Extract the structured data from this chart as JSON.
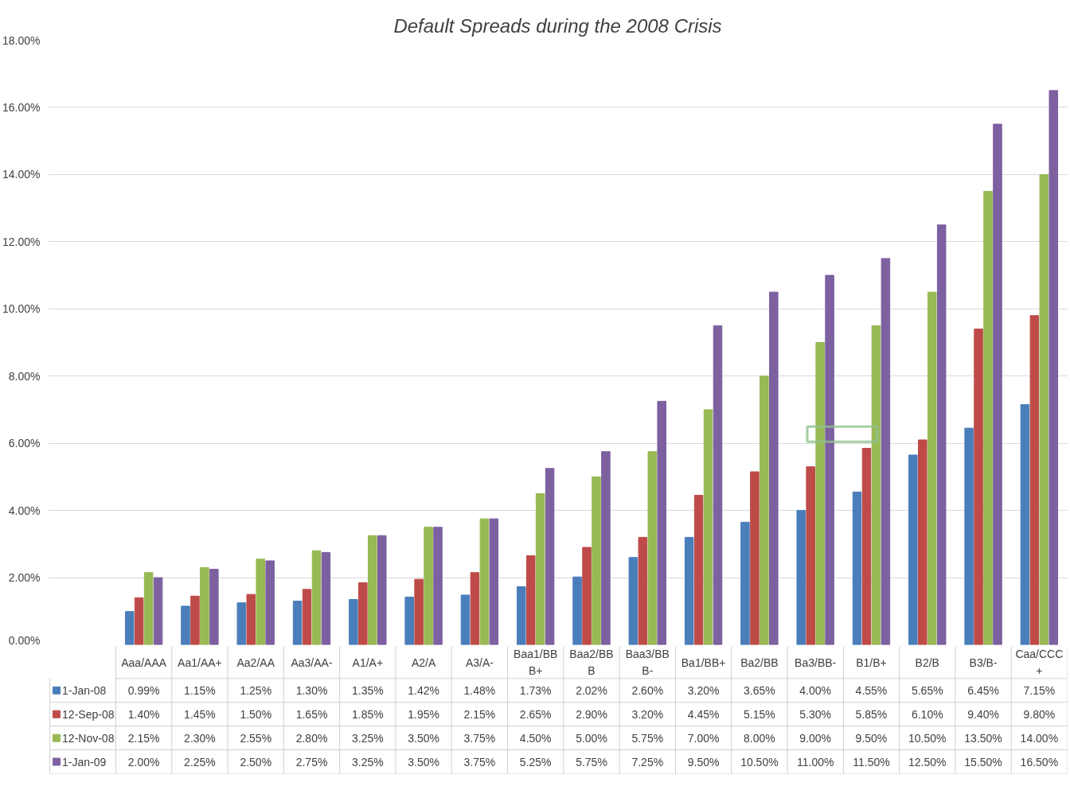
{
  "chart_data": {
    "type": "bar",
    "title": "Default Spreads during the 2008 Crisis",
    "categories": [
      "Aaa/AAA",
      "Aa1/AA+",
      "Aa2/AA",
      "Aa3/AA-",
      "A1/A+",
      "A2/A",
      "A3/A-",
      "Baa1/BBB+",
      "Baa2/BBB",
      "Baa3/BBB-",
      "Ba1/BB+",
      "Ba2/BB",
      "Ba3/BB-",
      "B1/B+",
      "B2/B",
      "B3/B-",
      "Caa/CCC+"
    ],
    "series": [
      {
        "name": "1-Jan-08",
        "color": "#4a7ebb",
        "values": [
          0.99,
          1.15,
          1.25,
          1.3,
          1.35,
          1.42,
          1.48,
          1.73,
          2.02,
          2.6,
          3.2,
          3.65,
          4.0,
          4.55,
          5.65,
          6.45,
          7.15
        ],
        "value_labels": [
          "0.99%",
          "1.15%",
          "1.25%",
          "1.30%",
          "1.35%",
          "1.42%",
          "1.48%",
          "1.73%",
          "2.02%",
          "2.60%",
          "3.20%",
          "3.65%",
          "4.00%",
          "4.55%",
          "5.65%",
          "6.45%",
          "7.15%"
        ]
      },
      {
        "name": "12-Sep-08",
        "color": "#be4b48",
        "values": [
          1.4,
          1.45,
          1.5,
          1.65,
          1.85,
          1.95,
          2.15,
          2.65,
          2.9,
          3.2,
          4.45,
          5.15,
          5.3,
          5.85,
          6.1,
          9.4,
          9.8
        ],
        "value_labels": [
          "1.40%",
          "1.45%",
          "1.50%",
          "1.65%",
          "1.85%",
          "1.95%",
          "2.15%",
          "2.65%",
          "2.90%",
          "3.20%",
          "4.45%",
          "5.15%",
          "5.30%",
          "5.85%",
          "6.10%",
          "9.40%",
          "9.80%"
        ]
      },
      {
        "name": "12-Nov-08",
        "color": "#98b954",
        "values": [
          2.15,
          2.3,
          2.55,
          2.8,
          3.25,
          3.5,
          3.75,
          4.5,
          5.0,
          5.75,
          7.0,
          8.0,
          9.0,
          9.5,
          10.5,
          13.5,
          14.0
        ],
        "value_labels": [
          "2.15%",
          "2.30%",
          "2.55%",
          "2.80%",
          "3.25%",
          "3.50%",
          "3.75%",
          "4.50%",
          "5.00%",
          "5.75%",
          "7.00%",
          "8.00%",
          "9.00%",
          "9.50%",
          "10.50%",
          "13.50%",
          "14.00%"
        ]
      },
      {
        "name": "1-Jan-09",
        "color": "#7d60a0",
        "values": [
          2.0,
          2.25,
          2.5,
          2.75,
          3.25,
          3.5,
          3.75,
          5.25,
          5.75,
          7.25,
          9.5,
          10.5,
          11.0,
          11.5,
          12.5,
          15.5,
          16.5
        ],
        "value_labels": [
          "2.00%",
          "2.25%",
          "2.50%",
          "2.75%",
          "3.25%",
          "3.50%",
          "3.75%",
          "5.25%",
          "5.75%",
          "7.25%",
          "9.50%",
          "10.50%",
          "11.00%",
          "11.50%",
          "12.50%",
          "15.50%",
          "16.50%"
        ]
      }
    ],
    "ylim": [
      0,
      18
    ],
    "yticks": [
      {
        "value": 0,
        "label": "0.00%"
      },
      {
        "value": 2,
        "label": "2.00%"
      },
      {
        "value": 4,
        "label": "4.00%"
      },
      {
        "value": 6,
        "label": "6.00%"
      },
      {
        "value": 8,
        "label": "8.00%"
      },
      {
        "value": 10,
        "label": "10.00%"
      },
      {
        "value": 12,
        "label": "12.00%"
      },
      {
        "value": 14,
        "label": "14.00%"
      },
      {
        "value": 16,
        "label": "16.00%"
      },
      {
        "value": 18,
        "label": "18.00%"
      }
    ],
    "grid": "y",
    "legend": "bottom"
  }
}
